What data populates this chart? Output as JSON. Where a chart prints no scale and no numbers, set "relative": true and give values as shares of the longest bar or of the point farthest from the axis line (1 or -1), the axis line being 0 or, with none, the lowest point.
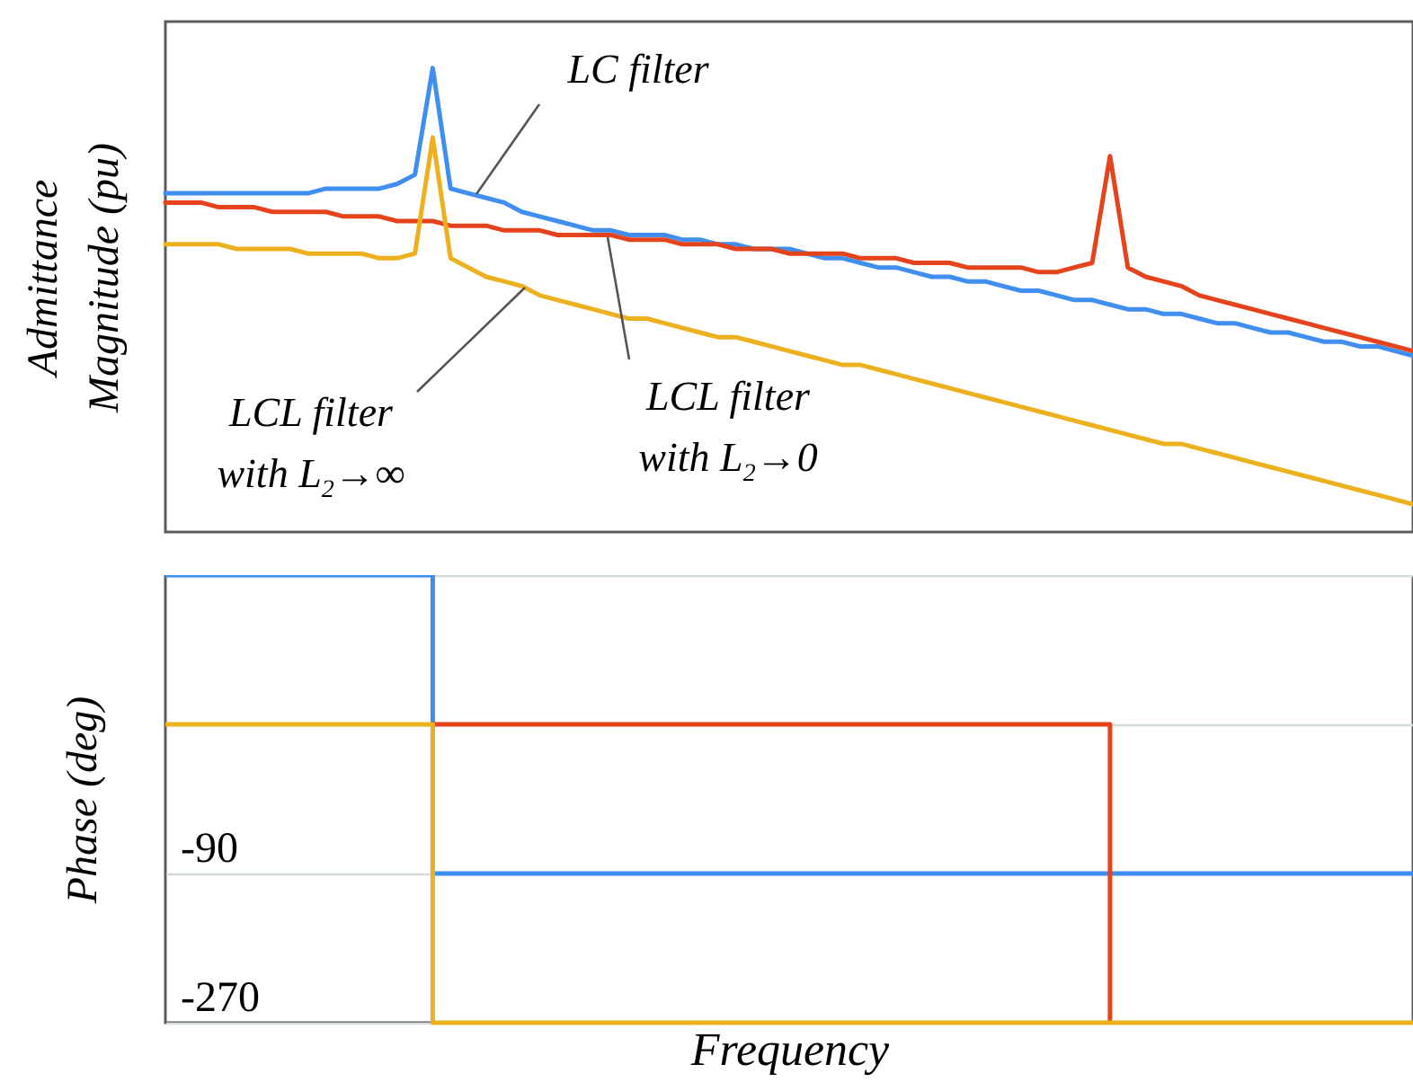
{
  "chart_data": [
    {
      "type": "line",
      "ylabel": "Admittance Magnitude (pu)",
      "relative": true,
      "categories": [
        null,
        null,
        null,
        null,
        null,
        null,
        null,
        null,
        null,
        null,
        null,
        null,
        null,
        null,
        null,
        null,
        null,
        null,
        null,
        null,
        null,
        null,
        null,
        null,
        null,
        null,
        null,
        null,
        null,
        null,
        null,
        null,
        null,
        null,
        null,
        null,
        null,
        null,
        null,
        null,
        null,
        null,
        null,
        null,
        null,
        null,
        null,
        null,
        null,
        null,
        null,
        null,
        null,
        null,
        null,
        null,
        null,
        null,
        null,
        null,
        null,
        null,
        null,
        null,
        null,
        null,
        null,
        null,
        null,
        null,
        null
      ],
      "series": [
        {
          "color": "#3f8ef0",
          "values": [
            0.73,
            0.73,
            0.73,
            0.73,
            0.73,
            0.73,
            0.73,
            0.73,
            0.73,
            0.74,
            0.74,
            0.74,
            0.74,
            0.75,
            0.77,
            1,
            0.74,
            0.73,
            0.72,
            0.71,
            0.69,
            0.68,
            0.67,
            0.66,
            0.65,
            0.65,
            0.64,
            0.64,
            0.64,
            0.63,
            0.63,
            0.62,
            0.62,
            0.61,
            0.61,
            0.61,
            0.6,
            0.59,
            0.59,
            0.58,
            0.57,
            0.57,
            0.56,
            0.55,
            0.55,
            0.54,
            0.54,
            0.53,
            0.52,
            0.52,
            0.51,
            0.5,
            0.5,
            0.49,
            0.48,
            0.48,
            0.47,
            0.47,
            0.46,
            0.45,
            0.45,
            0.44,
            0.43,
            0.43,
            0.42,
            0.41,
            0.41,
            0.4,
            0.4,
            0.39,
            0.38
          ]
        },
        {
          "color": "#e5431b",
          "values": [
            0.71,
            0.71,
            0.71,
            0.7,
            0.7,
            0.7,
            0.69,
            0.69,
            0.69,
            0.69,
            0.68,
            0.68,
            0.68,
            0.67,
            0.67,
            0.67,
            0.66,
            0.66,
            0.66,
            0.65,
            0.65,
            0.65,
            0.64,
            0.64,
            0.64,
            0.64,
            0.63,
            0.63,
            0.63,
            0.62,
            0.62,
            0.62,
            0.61,
            0.61,
            0.61,
            0.6,
            0.6,
            0.6,
            0.6,
            0.59,
            0.59,
            0.59,
            0.58,
            0.58,
            0.58,
            0.57,
            0.57,
            0.57,
            0.57,
            0.56,
            0.56,
            0.57,
            0.58,
            0.81,
            0.57,
            0.55,
            0.54,
            0.53,
            0.51,
            0.5,
            0.49,
            0.48,
            0.47,
            0.46,
            0.45,
            0.44,
            0.43,
            0.42,
            0.41,
            0.4,
            0.39
          ]
        },
        {
          "color": "#edb120",
          "values": [
            0.62,
            0.62,
            0.62,
            0.62,
            0.61,
            0.61,
            0.61,
            0.61,
            0.6,
            0.6,
            0.6,
            0.6,
            0.59,
            0.59,
            0.6,
            0.85,
            0.59,
            0.57,
            0.55,
            0.54,
            0.53,
            0.51,
            0.5,
            0.49,
            0.48,
            0.47,
            0.46,
            0.46,
            0.45,
            0.44,
            0.43,
            0.42,
            0.42,
            0.41,
            0.4,
            0.39,
            0.38,
            0.37,
            0.36,
            0.36,
            0.35,
            0.34,
            0.33,
            0.32,
            0.31,
            0.3,
            0.29,
            0.28,
            0.27,
            0.26,
            0.25,
            0.24,
            0.23,
            0.22,
            0.21,
            0.2,
            0.19,
            0.19,
            0.18,
            0.17,
            0.16,
            0.15,
            0.14,
            0.13,
            0.12,
            0.11,
            0.1,
            0.09,
            0.08,
            0.07,
            0.06
          ]
        }
      ],
      "annotations": [
        "LC filter",
        "LCL filter with L$_{2}$→∞",
        "LCL filter with L$_{2}$→0"
      ]
    },
    {
      "type": "step",
      "ylabel": "Phase (deg)",
      "xlabel": "Frequency",
      "ylim": [
        -270,
        270
      ],
      "yticks": [
        {
          "value": 270,
          "label": null
        },
        {
          "value": 90,
          "label": null
        },
        -90,
        -270
      ],
      "grid": "y",
      "categories": [
        null,
        null,
        null,
        null,
        null,
        null,
        null,
        null,
        null,
        null,
        null,
        null,
        null,
        null,
        null,
        null,
        null,
        null,
        null,
        null,
        null,
        null,
        null,
        null,
        null,
        null,
        null,
        null,
        null,
        null,
        null,
        null,
        null,
        null,
        null,
        null,
        null,
        null,
        null,
        null,
        null,
        null,
        null,
        null,
        null,
        null,
        null,
        null,
        null,
        null,
        null,
        null,
        null,
        null,
        null,
        null,
        null,
        null,
        null,
        null,
        null,
        null,
        null,
        null,
        null,
        null,
        null,
        null,
        null,
        null,
        null
      ],
      "series": [
        {
          "color": "#3f8ef0",
          "values": [
            270,
            270,
            270,
            270,
            270,
            270,
            270,
            270,
            270,
            270,
            270,
            270,
            270,
            270,
            270,
            -90,
            -90,
            -90,
            -90,
            -90,
            -90,
            -90,
            -90,
            -90,
            -90,
            -90,
            -90,
            -90,
            -90,
            -90,
            -90,
            -90,
            -90,
            -90,
            -90,
            -90,
            -90,
            -90,
            -90,
            -90,
            -90,
            -90,
            -90,
            -90,
            -90,
            -90,
            -90,
            -90,
            -90,
            -90,
            -90,
            -90,
            -90,
            -90,
            -90,
            -90,
            -90,
            -90,
            -90,
            -90,
            -90,
            -90,
            -90,
            -90,
            -90,
            -90,
            -90,
            -90,
            -90,
            -90,
            -90
          ]
        },
        {
          "color": "#e5431b",
          "values": [
            null,
            null,
            null,
            null,
            null,
            null,
            null,
            null,
            null,
            null,
            null,
            null,
            null,
            null,
            null,
            90,
            90,
            90,
            90,
            90,
            90,
            90,
            90,
            90,
            90,
            90,
            90,
            90,
            90,
            90,
            90,
            90,
            90,
            90,
            90,
            90,
            90,
            90,
            90,
            90,
            90,
            90,
            90,
            90,
            90,
            90,
            90,
            90,
            90,
            90,
            90,
            90,
            90,
            -270,
            null,
            null,
            null,
            null,
            null,
            null,
            null,
            null,
            null,
            null,
            null,
            null,
            null,
            null,
            null,
            null,
            null
          ]
        },
        {
          "color": "#edb120",
          "values": [
            90,
            90,
            90,
            90,
            90,
            90,
            90,
            90,
            90,
            90,
            90,
            90,
            90,
            90,
            90,
            -270,
            -270,
            -270,
            -270,
            -270,
            -270,
            -270,
            -270,
            -270,
            -270,
            -270,
            -270,
            -270,
            -270,
            -270,
            -270,
            -270,
            -270,
            -270,
            -270,
            -270,
            -270,
            -270,
            -270,
            -270,
            -270,
            -270,
            -270,
            -270,
            -270,
            -270,
            -270,
            -270,
            -270,
            -270,
            -270,
            -270,
            -270,
            -270,
            -270,
            -270,
            -270,
            -270,
            -270,
            -270,
            -270,
            -270,
            -270,
            -270,
            -270,
            -270,
            -270,
            -270,
            -270,
            -270,
            -270
          ]
        }
      ]
    }
  ]
}
